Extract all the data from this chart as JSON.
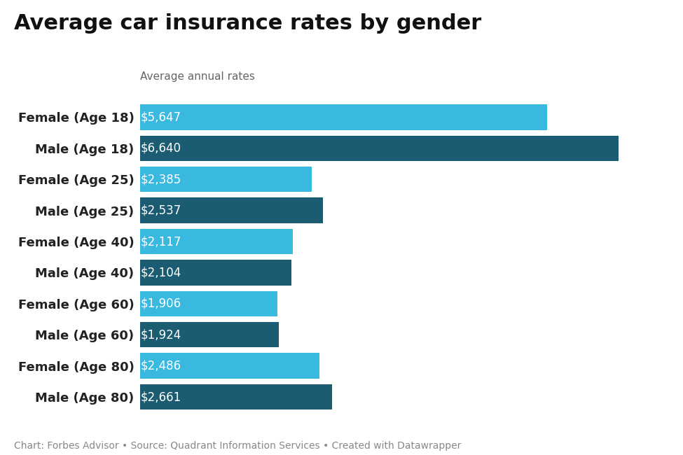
{
  "title": "Average car insurance rates by gender",
  "subtitle": "Average annual rates",
  "categories": [
    "Female (Age 18)",
    "Male (Age 18)",
    "Female (Age 25)",
    "Male (Age 25)",
    "Female (Age 40)",
    "Male (Age 40)",
    "Female (Age 60)",
    "Male (Age 60)",
    "Female (Age 80)",
    "Male (Age 80)"
  ],
  "values": [
    5647,
    6640,
    2385,
    2537,
    2117,
    2104,
    1906,
    1924,
    2486,
    2661
  ],
  "labels": [
    "$5,647",
    "$6,640",
    "$2,385",
    "$2,537",
    "$2,117",
    "$2,104",
    "$1,906",
    "$1,924",
    "$2,486",
    "$2,661"
  ],
  "colors": [
    "#39b8e0",
    "#1b5c72",
    "#39b8e0",
    "#1b5c72",
    "#39b8e0",
    "#1b5c72",
    "#39b8e0",
    "#1b5c72",
    "#39b8e0",
    "#1b5c72"
  ],
  "footer": "Chart: Forbes Advisor • Source: Quadrant Information Services • Created with Datawrapper",
  "background_color": "#ffffff",
  "bar_height": 0.82,
  "xlim": [
    0,
    7300
  ],
  "title_fontsize": 22,
  "subtitle_fontsize": 11,
  "footer_fontsize": 10,
  "ytick_fontsize": 13,
  "bar_label_fontsize": 12
}
